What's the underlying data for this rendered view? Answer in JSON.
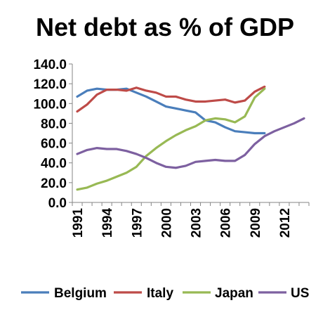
{
  "chart_data": {
    "type": "line",
    "title": "Net debt as % of GDP",
    "xlabel": "",
    "ylabel": "",
    "x": [
      1991,
      1992,
      1993,
      1994,
      1995,
      1996,
      1997,
      1998,
      1999,
      2000,
      2001,
      2002,
      2003,
      2004,
      2005,
      2006,
      2007,
      2008,
      2009,
      2010,
      2011,
      2012,
      2013,
      2014
    ],
    "x_ticks": [
      "1991",
      "1994",
      "1997",
      "2000",
      "2003",
      "2006",
      "2009",
      "2012"
    ],
    "ylim": [
      0,
      140
    ],
    "y_ticks": [
      "0.0",
      "20.0",
      "40.0",
      "60.0",
      "80.0",
      "100.0",
      "120.0",
      "140.0"
    ],
    "grid": false,
    "legend": "bottom",
    "series": [
      {
        "name": "Belgium",
        "color": "#4a7ebb",
        "values": [
          107,
          113,
          115,
          114,
          114,
          115,
          111,
          107,
          102,
          97,
          95,
          93,
          91,
          83,
          81,
          76,
          72,
          71,
          70,
          70,
          null,
          null,
          null,
          null
        ]
      },
      {
        "name": "Italy",
        "color": "#be4b48",
        "values": [
          92,
          99,
          109,
          114,
          114,
          113,
          116,
          113,
          111,
          107,
          107,
          104,
          102,
          102,
          103,
          104,
          101,
          103,
          112,
          117,
          null,
          null,
          null,
          null
        ]
      },
      {
        "name": "Japan",
        "color": "#98b954",
        "values": [
          13,
          15,
          19,
          22,
          26,
          30,
          36,
          47,
          55,
          62,
          68,
          73,
          77,
          83,
          85,
          84,
          81,
          87,
          106,
          115,
          null,
          null,
          null,
          null
        ]
      },
      {
        "name": "US",
        "color": "#7d60a0",
        "values": [
          49,
          53,
          55,
          54,
          54,
          52,
          49,
          45,
          40,
          36,
          35,
          37,
          41,
          42,
          43,
          42,
          42,
          48,
          59,
          67,
          72,
          76,
          80,
          85
        ]
      }
    ]
  }
}
